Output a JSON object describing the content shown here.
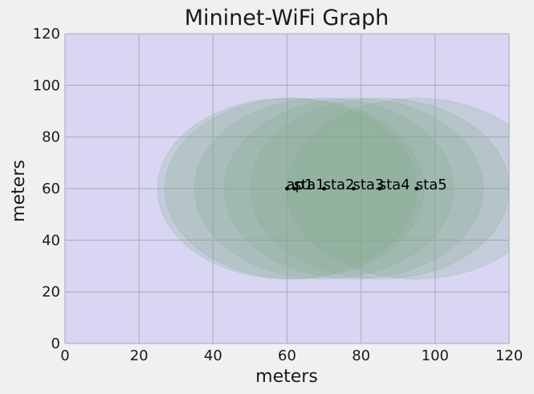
{
  "chart_data": {
    "type": "scatter",
    "title": "Mininet-WiFi Graph",
    "xlabel": "meters",
    "ylabel": "meters",
    "xlim": [
      0,
      120
    ],
    "ylim": [
      0,
      120
    ],
    "xticks": [
      0,
      20,
      40,
      60,
      80,
      100,
      120
    ],
    "yticks": [
      0,
      20,
      40,
      60,
      80,
      100,
      120
    ],
    "grid": true,
    "range_meters": 35,
    "nodes": [
      {
        "label": "ap1",
        "x": 60,
        "y": 60
      },
      {
        "label": "sta1",
        "x": 62,
        "y": 60
      },
      {
        "label": "sta2",
        "x": 70,
        "y": 60
      },
      {
        "label": "sta3",
        "x": 78,
        "y": 60
      },
      {
        "label": "sta4",
        "x": 85,
        "y": 60
      },
      {
        "label": "sta5",
        "x": 95,
        "y": 60
      }
    ]
  },
  "colors": {
    "figure_bg": "#f0f0f0",
    "plot_bg": "#d8d6f2",
    "grid": "#b3b3c6",
    "range_fill": "#7fa88a",
    "node": "#000000"
  }
}
